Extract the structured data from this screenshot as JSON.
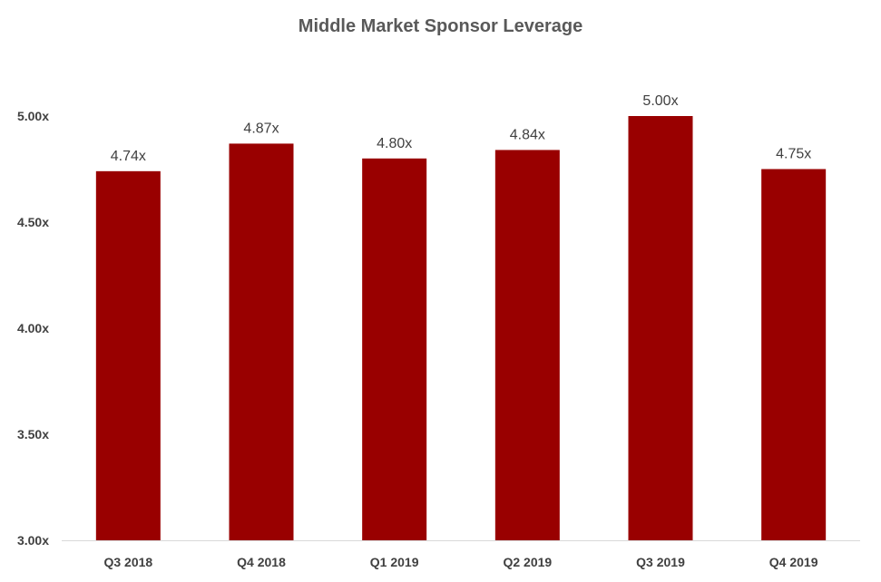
{
  "chart_data": {
    "type": "bar",
    "title": "Middle Market Sponsor Leverage",
    "xlabel": "",
    "ylabel": "",
    "categories": [
      "Q3 2018",
      "Q4 2018",
      "Q1 2019",
      "Q2 2019",
      "Q3 2019",
      "Q4 2019"
    ],
    "values": [
      4.74,
      4.87,
      4.8,
      4.84,
      5.0,
      4.75
    ],
    "data_labels": [
      "4.74x",
      "4.87x",
      "4.80x",
      "4.84x",
      "5.00x",
      "4.75x"
    ],
    "ylim": [
      3.0,
      5.0
    ],
    "yticks": [
      3.0,
      3.5,
      4.0,
      4.5,
      5.0
    ],
    "ytick_labels": [
      "3.00x",
      "3.50x",
      "4.00x",
      "4.50x",
      "5.00x"
    ],
    "grid": false,
    "legend": "none",
    "bar_color": "#990000",
    "axis_color": "#d9d9d9",
    "text_color": "#404040"
  }
}
